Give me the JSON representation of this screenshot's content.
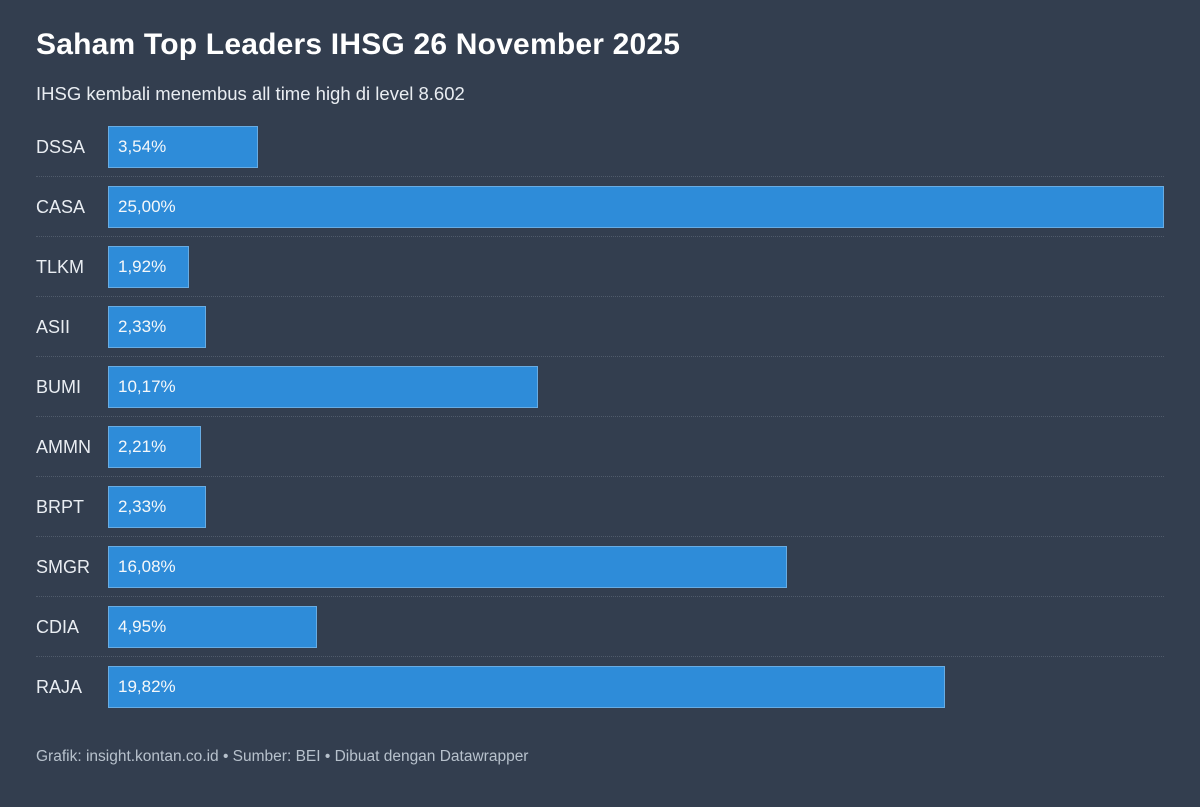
{
  "header": {
    "title": "Saham Top Leaders IHSG 26 November 2025",
    "subtitle": "IHSG kembali menembus all time high di level 8.602"
  },
  "chart_data": {
    "type": "bar",
    "orientation": "horizontal",
    "title": "Saham Top Leaders IHSG 26 November 2025",
    "subtitle": "IHSG kembali menembus all time high di level 8.602",
    "categories": [
      "DSSA",
      "CASA",
      "TLKM",
      "ASII",
      "BUMI",
      "AMMN",
      "BRPT",
      "SMGR",
      "CDIA",
      "RAJA"
    ],
    "values": [
      3.54,
      25.0,
      1.92,
      2.33,
      10.17,
      2.21,
      2.33,
      16.08,
      4.95,
      19.82
    ],
    "value_labels": [
      "3,54%",
      "25,00%",
      "1,92%",
      "2,33%",
      "10,17%",
      "2,21%",
      "2,33%",
      "16,08%",
      "4,95%",
      "19,82%"
    ],
    "xlabel": "",
    "ylabel": "",
    "xlim": [
      0,
      25
    ],
    "grid": "off",
    "legend": "none",
    "value_label_position": "inside-start",
    "separators": "dotted between rows"
  },
  "colors": {
    "background": "#333e4f",
    "bar": "#2e8cd9",
    "bar_border": "rgba(255,255,255,0.28)",
    "title_text": "#ffffff",
    "body_text": "#e9edf2",
    "footer_text": "#b7c1cc",
    "separator": "#505b6b"
  },
  "footer": {
    "text": "Grafik: insight.kontan.co.id • Sumber: BEI • Dibuat dengan Datawrapper"
  }
}
